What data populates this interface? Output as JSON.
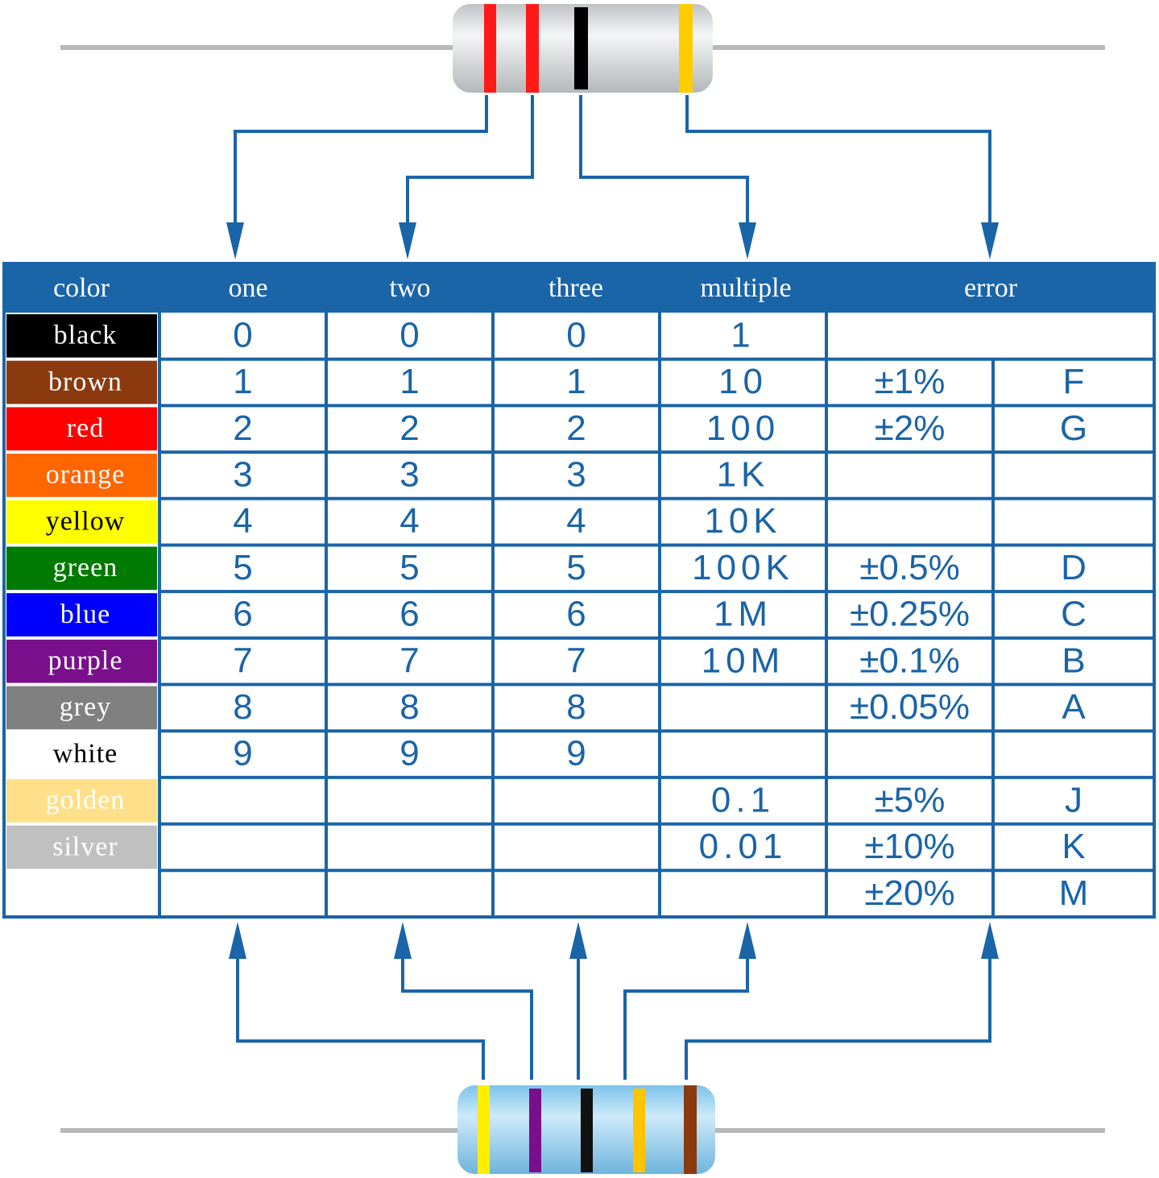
{
  "table": {
    "header": [
      "color",
      "one",
      "two",
      "three",
      "multiple",
      "error"
    ],
    "header_color": "#1a64a8",
    "line_color": "#1a64a8",
    "rows": [
      {
        "color": "black",
        "swatch": "#000000",
        "ink": "#ffffff",
        "one": "0",
        "two": "0",
        "three": "0",
        "multiple": "1"
      },
      {
        "color": "brown",
        "swatch": "#8b3a0f",
        "ink": "#ffffff",
        "one": "1",
        "two": "1",
        "three": "1",
        "multiple": "10",
        "tolerance": "±1%",
        "code": "F"
      },
      {
        "color": "red",
        "swatch": "#ff0000",
        "ink": "#ffffff",
        "one": "2",
        "two": "2",
        "three": "2",
        "multiple": "100",
        "tolerance": "±2%",
        "code": "G"
      },
      {
        "color": "orange",
        "swatch": "#ff6600",
        "ink": "#ffffff",
        "one": "3",
        "two": "3",
        "three": "3",
        "multiple": "1K"
      },
      {
        "color": "yellow",
        "swatch": "#ffff00",
        "ink": "#000000",
        "one": "4",
        "two": "4",
        "three": "4",
        "multiple": "10K"
      },
      {
        "color": "green",
        "swatch": "#007a00",
        "ink": "#ffffff",
        "one": "5",
        "two": "5",
        "three": "5",
        "multiple": "100K",
        "tolerance": "±0.5%",
        "code": "D"
      },
      {
        "color": "blue",
        "swatch": "#0000ff",
        "ink": "#ffffff",
        "one": "6",
        "two": "6",
        "three": "6",
        "multiple": "1M",
        "tolerance": "±0.25%",
        "code": "C"
      },
      {
        "color": "purple",
        "swatch": "#7a0f8c",
        "ink": "#ffffff",
        "one": "7",
        "two": "7",
        "three": "7",
        "multiple": "10M",
        "tolerance": "±0.1%",
        "code": "B"
      },
      {
        "color": "grey",
        "swatch": "#808080",
        "ink": "#ffffff",
        "one": "8",
        "two": "8",
        "three": "8",
        "tolerance": "±0.05%",
        "code": "A"
      },
      {
        "color": "white",
        "swatch": "#ffffff",
        "ink": "#000000",
        "one": "9",
        "two": "9",
        "three": "9"
      },
      {
        "color": "golden",
        "swatch": "#ffe08a",
        "ink": "#ffffff",
        "multiple": "0.1",
        "tolerance": "±5%",
        "code": "J"
      },
      {
        "color": "silver",
        "swatch": "#c0c0c0",
        "ink": "#ffffff",
        "multiple": "0.01",
        "tolerance": "±10%",
        "code": "K"
      },
      {
        "tolerance": "±20%",
        "code": "M"
      }
    ]
  }
}
